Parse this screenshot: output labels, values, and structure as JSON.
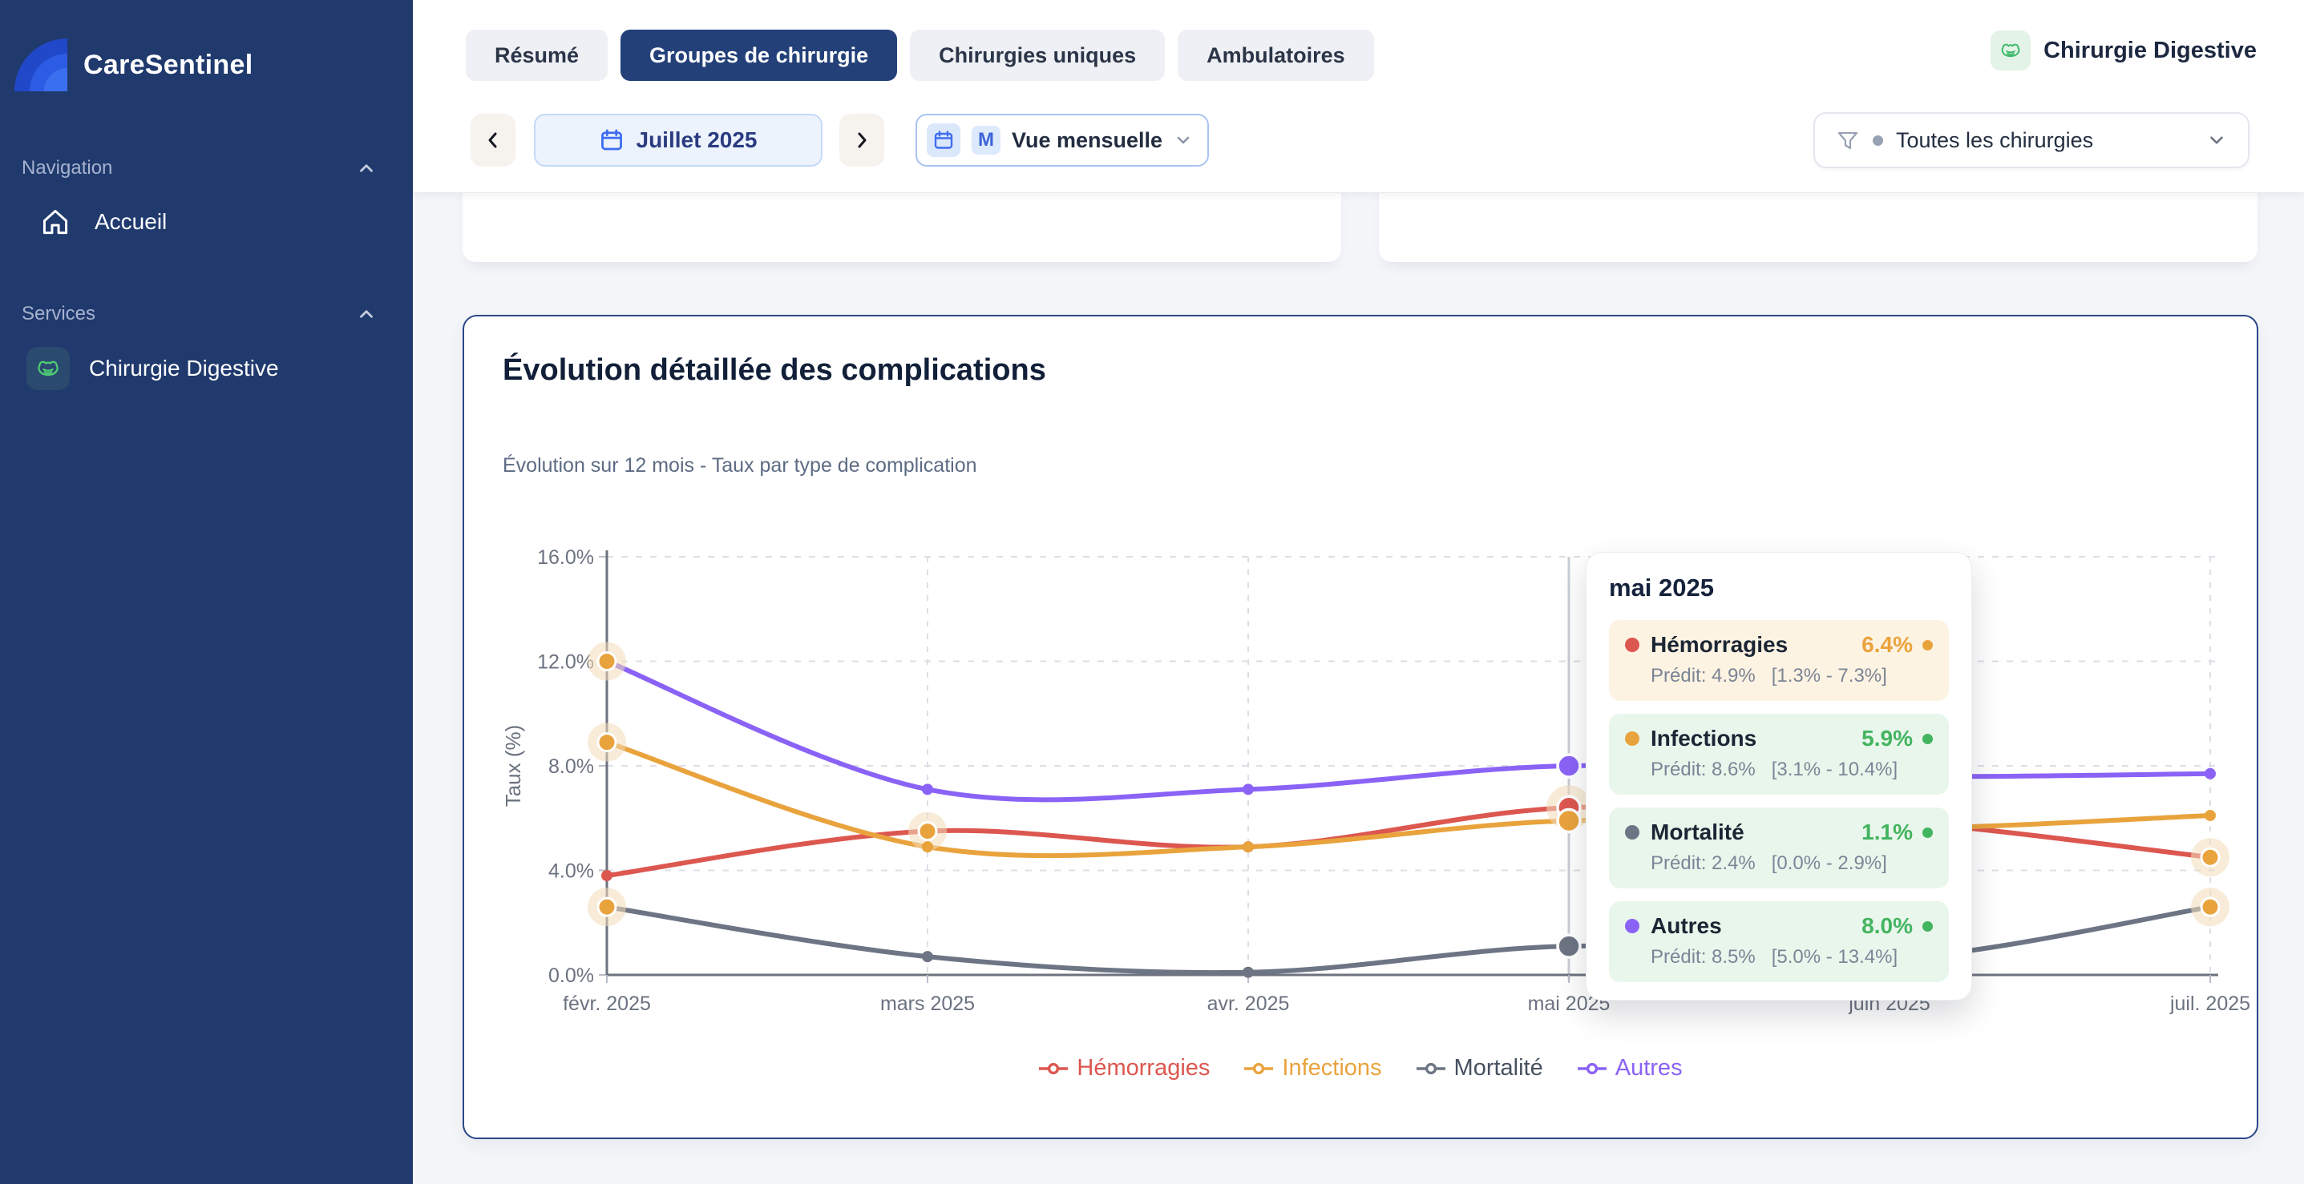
{
  "sidebar": {
    "brand": "CareSentinel",
    "sections": [
      {
        "label": "Navigation",
        "items": [
          {
            "label": "Accueil",
            "icon": "home-icon"
          }
        ]
      },
      {
        "label": "Services",
        "items": [
          {
            "label": "Chirurgie Digestive",
            "icon": "stomach-icon"
          }
        ]
      }
    ]
  },
  "header": {
    "tabs": [
      {
        "label": "Résumé",
        "active": false
      },
      {
        "label": "Groupes de chirurgie",
        "active": true
      },
      {
        "label": "Chirurgies uniques",
        "active": false
      },
      {
        "label": "Ambulatoires",
        "active": false
      }
    ],
    "period": {
      "label": "Juillet 2025"
    },
    "view": {
      "badge": "M",
      "label": "Vue mensuelle"
    },
    "service": {
      "label": "Chirurgie Digestive"
    },
    "filter": {
      "label": "Toutes les chirurgies"
    }
  },
  "card": {
    "title": "Évolution détaillée des complications",
    "subtitle": "Évolution sur 12 mois - Taux par type de complication"
  },
  "chart_data": {
    "type": "line",
    "x": [
      "févr. 2025",
      "mars 2025",
      "avr. 2025",
      "mai 2025",
      "juin 2025",
      "juil. 2025"
    ],
    "ylabel": "Taux (%)",
    "ylim": [
      0,
      16
    ],
    "yticks": [
      "0.0%",
      "4.0%",
      "8.0%",
      "12.0%",
      "16.0%"
    ],
    "grid": true,
    "legend_position": "bottom",
    "hover_index": 3,
    "series": [
      {
        "name": "Hémorragies",
        "color": "#dc5750",
        "values": [
          3.8,
          5.5,
          4.9,
          6.4,
          5.9,
          4.5
        ],
        "anomalies": [
          1,
          3,
          5
        ]
      },
      {
        "name": "Infections",
        "color": "#e9a33d",
        "values": [
          8.9,
          4.9,
          4.9,
          5.9,
          5.6,
          6.1
        ],
        "anomalies": [
          0
        ]
      },
      {
        "name": "Mortalité",
        "color": "#6d7584",
        "values": [
          2.6,
          0.7,
          0.1,
          1.1,
          0.6,
          2.6
        ],
        "anomalies": [
          0,
          5
        ]
      },
      {
        "name": "Autres",
        "color": "#8a63f6",
        "values": [
          12.0,
          7.1,
          7.1,
          8.0,
          7.6,
          7.7
        ],
        "anomalies": [
          0
        ]
      }
    ]
  },
  "tooltip": {
    "title": "mai 2025",
    "rows": [
      {
        "name": "Hémorragies",
        "dot": "#dc5750",
        "value": "6.4%",
        "value_color": "#e9a33d",
        "status_color": "#e9a33d",
        "bg": "#fdf3e2",
        "predicted": "Prédit: 4.9%",
        "range": "[1.3% - 7.3%]"
      },
      {
        "name": "Infections",
        "dot": "#e9a33d",
        "value": "5.9%",
        "value_color": "#43b45f",
        "status_color": "#43b45f",
        "bg": "#e9f6ec",
        "predicted": "Prédit: 8.6%",
        "range": "[3.1% - 10.4%]"
      },
      {
        "name": "Mortalité",
        "dot": "#6d7584",
        "value": "1.1%",
        "value_color": "#43b45f",
        "status_color": "#43b45f",
        "bg": "#e9f6ec",
        "predicted": "Prédit: 2.4%",
        "range": "[0.0% - 2.9%]"
      },
      {
        "name": "Autres",
        "dot": "#8a63f6",
        "value": "8.0%",
        "value_color": "#43b45f",
        "status_color": "#43b45f",
        "bg": "#e9f6ec",
        "predicted": "Prédit: 8.5%",
        "range": "[5.0% - 13.4%]"
      }
    ]
  },
  "legend": [
    {
      "label": "Hémorragies",
      "color": "#dc5750",
      "text_color": "#dc5750"
    },
    {
      "label": "Infections",
      "color": "#e9a33d",
      "text_color": "#e9a33d"
    },
    {
      "label": "Mortalité",
      "color": "#6d7584",
      "text_color": "#47505f"
    },
    {
      "label": "Autres",
      "color": "#8a63f6",
      "text_color": "#8a63f6"
    }
  ]
}
